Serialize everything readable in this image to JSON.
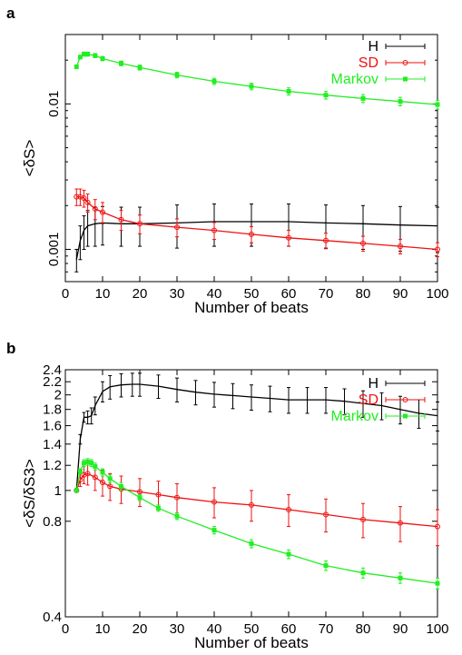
{
  "chart_data": [
    {
      "panel": "a",
      "type": "line",
      "xlabel": "Number of beats",
      "ylabel": "<δS>",
      "xlim": [
        0,
        100
      ],
      "ylim": [
        0.0006,
        0.03
      ],
      "yscale": "log",
      "xticks": [
        0,
        10,
        20,
        30,
        40,
        50,
        60,
        70,
        80,
        90,
        100
      ],
      "yticks": [
        0.001,
        0.01
      ],
      "ytick_labels": [
        "0.001",
        "0.01"
      ],
      "grid": false,
      "legend_position": "top-right",
      "series": [
        {
          "name": "H",
          "color": "#000000",
          "marker": "none",
          "errorbars": true,
          "x": [
            3,
            4,
            5,
            6,
            8,
            10,
            15,
            20,
            30,
            40,
            50,
            60,
            70,
            80,
            90,
            100
          ],
          "y": [
            0.00085,
            0.00115,
            0.00135,
            0.00145,
            0.0015,
            0.00152,
            0.0015,
            0.0015,
            0.00152,
            0.00155,
            0.00155,
            0.00155,
            0.00152,
            0.0015,
            0.00147,
            0.00145
          ],
          "err": [
            0.00015,
            0.0003,
            0.00035,
            0.0004,
            0.00045,
            0.00045,
            0.00045,
            0.00045,
            0.0005,
            0.0005,
            0.0005,
            0.0005,
            0.0005,
            0.0005,
            0.0005,
            0.0005
          ]
        },
        {
          "name": "SD",
          "color": "#ee1111",
          "marker": "circle",
          "errorbars": true,
          "x": [
            3,
            4,
            5,
            6,
            8,
            10,
            15,
            20,
            30,
            40,
            50,
            60,
            70,
            80,
            90,
            100
          ],
          "y": [
            0.0023,
            0.0023,
            0.00225,
            0.0021,
            0.0019,
            0.0018,
            0.0016,
            0.0015,
            0.00142,
            0.00135,
            0.00127,
            0.0012,
            0.00115,
            0.0011,
            0.00105,
            0.001
          ],
          "err": [
            0.0003,
            0.0003,
            0.0003,
            0.0003,
            0.0003,
            0.0003,
            0.00025,
            0.00022,
            0.0002,
            0.00018,
            0.00016,
            0.00015,
            0.00014,
            0.00013,
            0.00012,
            0.00011
          ]
        },
        {
          "name": "Markov",
          "color": "#22ee22",
          "marker": "square",
          "errorbars": true,
          "x": [
            3,
            4,
            5,
            6,
            8,
            10,
            15,
            20,
            30,
            40,
            50,
            60,
            70,
            80,
            90,
            100
          ],
          "y": [
            0.018,
            0.021,
            0.022,
            0.022,
            0.0215,
            0.0205,
            0.019,
            0.0178,
            0.0158,
            0.0143,
            0.0132,
            0.0122,
            0.0115,
            0.0109,
            0.0104,
            0.0099
          ],
          "err": [
            0.0005,
            0.0006,
            0.0007,
            0.0007,
            0.0007,
            0.0007,
            0.0007,
            0.0007,
            0.0007,
            0.0007,
            0.0007,
            0.0007,
            0.0007,
            0.0007,
            0.0007,
            0.0007
          ]
        }
      ]
    },
    {
      "panel": "b",
      "type": "line",
      "xlabel": "Number of beats",
      "ylabel": "<δS/δS3>",
      "xlim": [
        0,
        100
      ],
      "ylim": [
        0.4,
        2.4
      ],
      "yscale": "log",
      "xticks": [
        0,
        10,
        20,
        30,
        40,
        50,
        60,
        70,
        80,
        90,
        100
      ],
      "yticks": [
        0.4,
        0.8,
        1,
        1.2,
        1.4,
        1.6,
        1.8,
        2,
        2.2,
        2.4
      ],
      "ytick_labels": [
        "0.4",
        "0.8",
        "1",
        "1.2",
        "1.4",
        "1.6",
        "1.8",
        "2",
        "2.2",
        "2.4"
      ],
      "grid": false,
      "legend_position": "top-right",
      "series": [
        {
          "name": "H",
          "color": "#000000",
          "marker": "none",
          "errorbars": true,
          "x": [
            3,
            4,
            5,
            6,
            7,
            8,
            10,
            12,
            15,
            18,
            20,
            25,
            30,
            35,
            40,
            45,
            50,
            55,
            60,
            65,
            70,
            75,
            80,
            85,
            90,
            95,
            100
          ],
          "y": [
            1.0,
            1.45,
            1.7,
            1.7,
            1.72,
            1.85,
            2.05,
            2.12,
            2.15,
            2.16,
            2.16,
            2.13,
            2.08,
            2.04,
            2.01,
            1.99,
            1.97,
            1.95,
            1.93,
            1.93,
            1.93,
            1.91,
            1.88,
            1.85,
            1.8,
            1.75,
            1.72
          ],
          "err": [
            0.0,
            0.05,
            0.06,
            0.08,
            0.1,
            0.12,
            0.15,
            0.18,
            0.18,
            0.18,
            0.18,
            0.18,
            0.18,
            0.18,
            0.18,
            0.18,
            0.18,
            0.18,
            0.18,
            0.18,
            0.18,
            0.18,
            0.18,
            0.18,
            0.18,
            0.18,
            0.18
          ]
        },
        {
          "name": "SD",
          "color": "#ee1111",
          "marker": "circle",
          "errorbars": true,
          "x": [
            3,
            4,
            5,
            6,
            8,
            10,
            12,
            15,
            20,
            25,
            30,
            40,
            50,
            60,
            70,
            80,
            90,
            100
          ],
          "y": [
            1.0,
            1.08,
            1.12,
            1.13,
            1.1,
            1.06,
            1.03,
            1.01,
            0.99,
            0.97,
            0.95,
            0.92,
            0.9,
            0.87,
            0.84,
            0.81,
            0.79,
            0.77
          ],
          "err": [
            0.0,
            0.05,
            0.07,
            0.09,
            0.1,
            0.1,
            0.1,
            0.1,
            0.1,
            0.1,
            0.1,
            0.1,
            0.1,
            0.1,
            0.1,
            0.1,
            0.1,
            0.1
          ]
        },
        {
          "name": "Markov",
          "color": "#22ee22",
          "marker": "square",
          "errorbars": true,
          "x": [
            3,
            4,
            5,
            6,
            7,
            8,
            10,
            12,
            15,
            20,
            25,
            30,
            40,
            50,
            60,
            70,
            80,
            90,
            100
          ],
          "y": [
            1.0,
            1.15,
            1.22,
            1.23,
            1.22,
            1.19,
            1.14,
            1.09,
            1.03,
            0.95,
            0.88,
            0.83,
            0.75,
            0.68,
            0.63,
            0.58,
            0.55,
            0.53,
            0.51
          ],
          "err": [
            0.0,
            0.02,
            0.03,
            0.03,
            0.03,
            0.03,
            0.03,
            0.03,
            0.03,
            0.02,
            0.02,
            0.02,
            0.02,
            0.02,
            0.02,
            0.02,
            0.02,
            0.02,
            0.02
          ]
        }
      ]
    }
  ]
}
